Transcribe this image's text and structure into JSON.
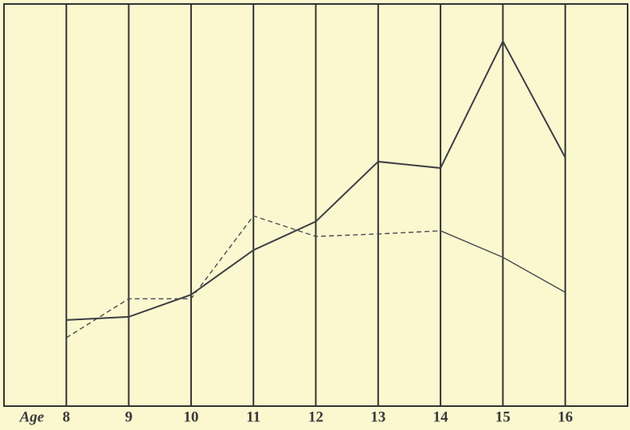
{
  "chart_data": {
    "type": "line",
    "x_label": "Age",
    "x": [
      8,
      9,
      10,
      11,
      12,
      13,
      14,
      15,
      16
    ],
    "xlim": [
      7,
      17
    ],
    "xticks": [
      8,
      9,
      10,
      11,
      12,
      13,
      14,
      15,
      16
    ],
    "ylim": [
      0,
      100
    ],
    "grid": true,
    "series": [
      {
        "color": "#3d3d45",
        "width": 2,
        "dash": false,
        "values": [
          21.4,
          22.2,
          27.7,
          38.8,
          45.9,
          60.8,
          59.2,
          90.7,
          61.8
        ]
      },
      {
        "color": "#4a4a52",
        "width": 1.4,
        "dash": true,
        "values": [
          17.0,
          26.7,
          26.7,
          47.3,
          42.2,
          42.8,
          43.6,
          null,
          null
        ]
      },
      {
        "color": "#4a4a52",
        "width": 1.4,
        "dash": false,
        "values": [
          null,
          null,
          null,
          null,
          null,
          null,
          43.6,
          37.0,
          28.3
        ]
      }
    ]
  }
}
